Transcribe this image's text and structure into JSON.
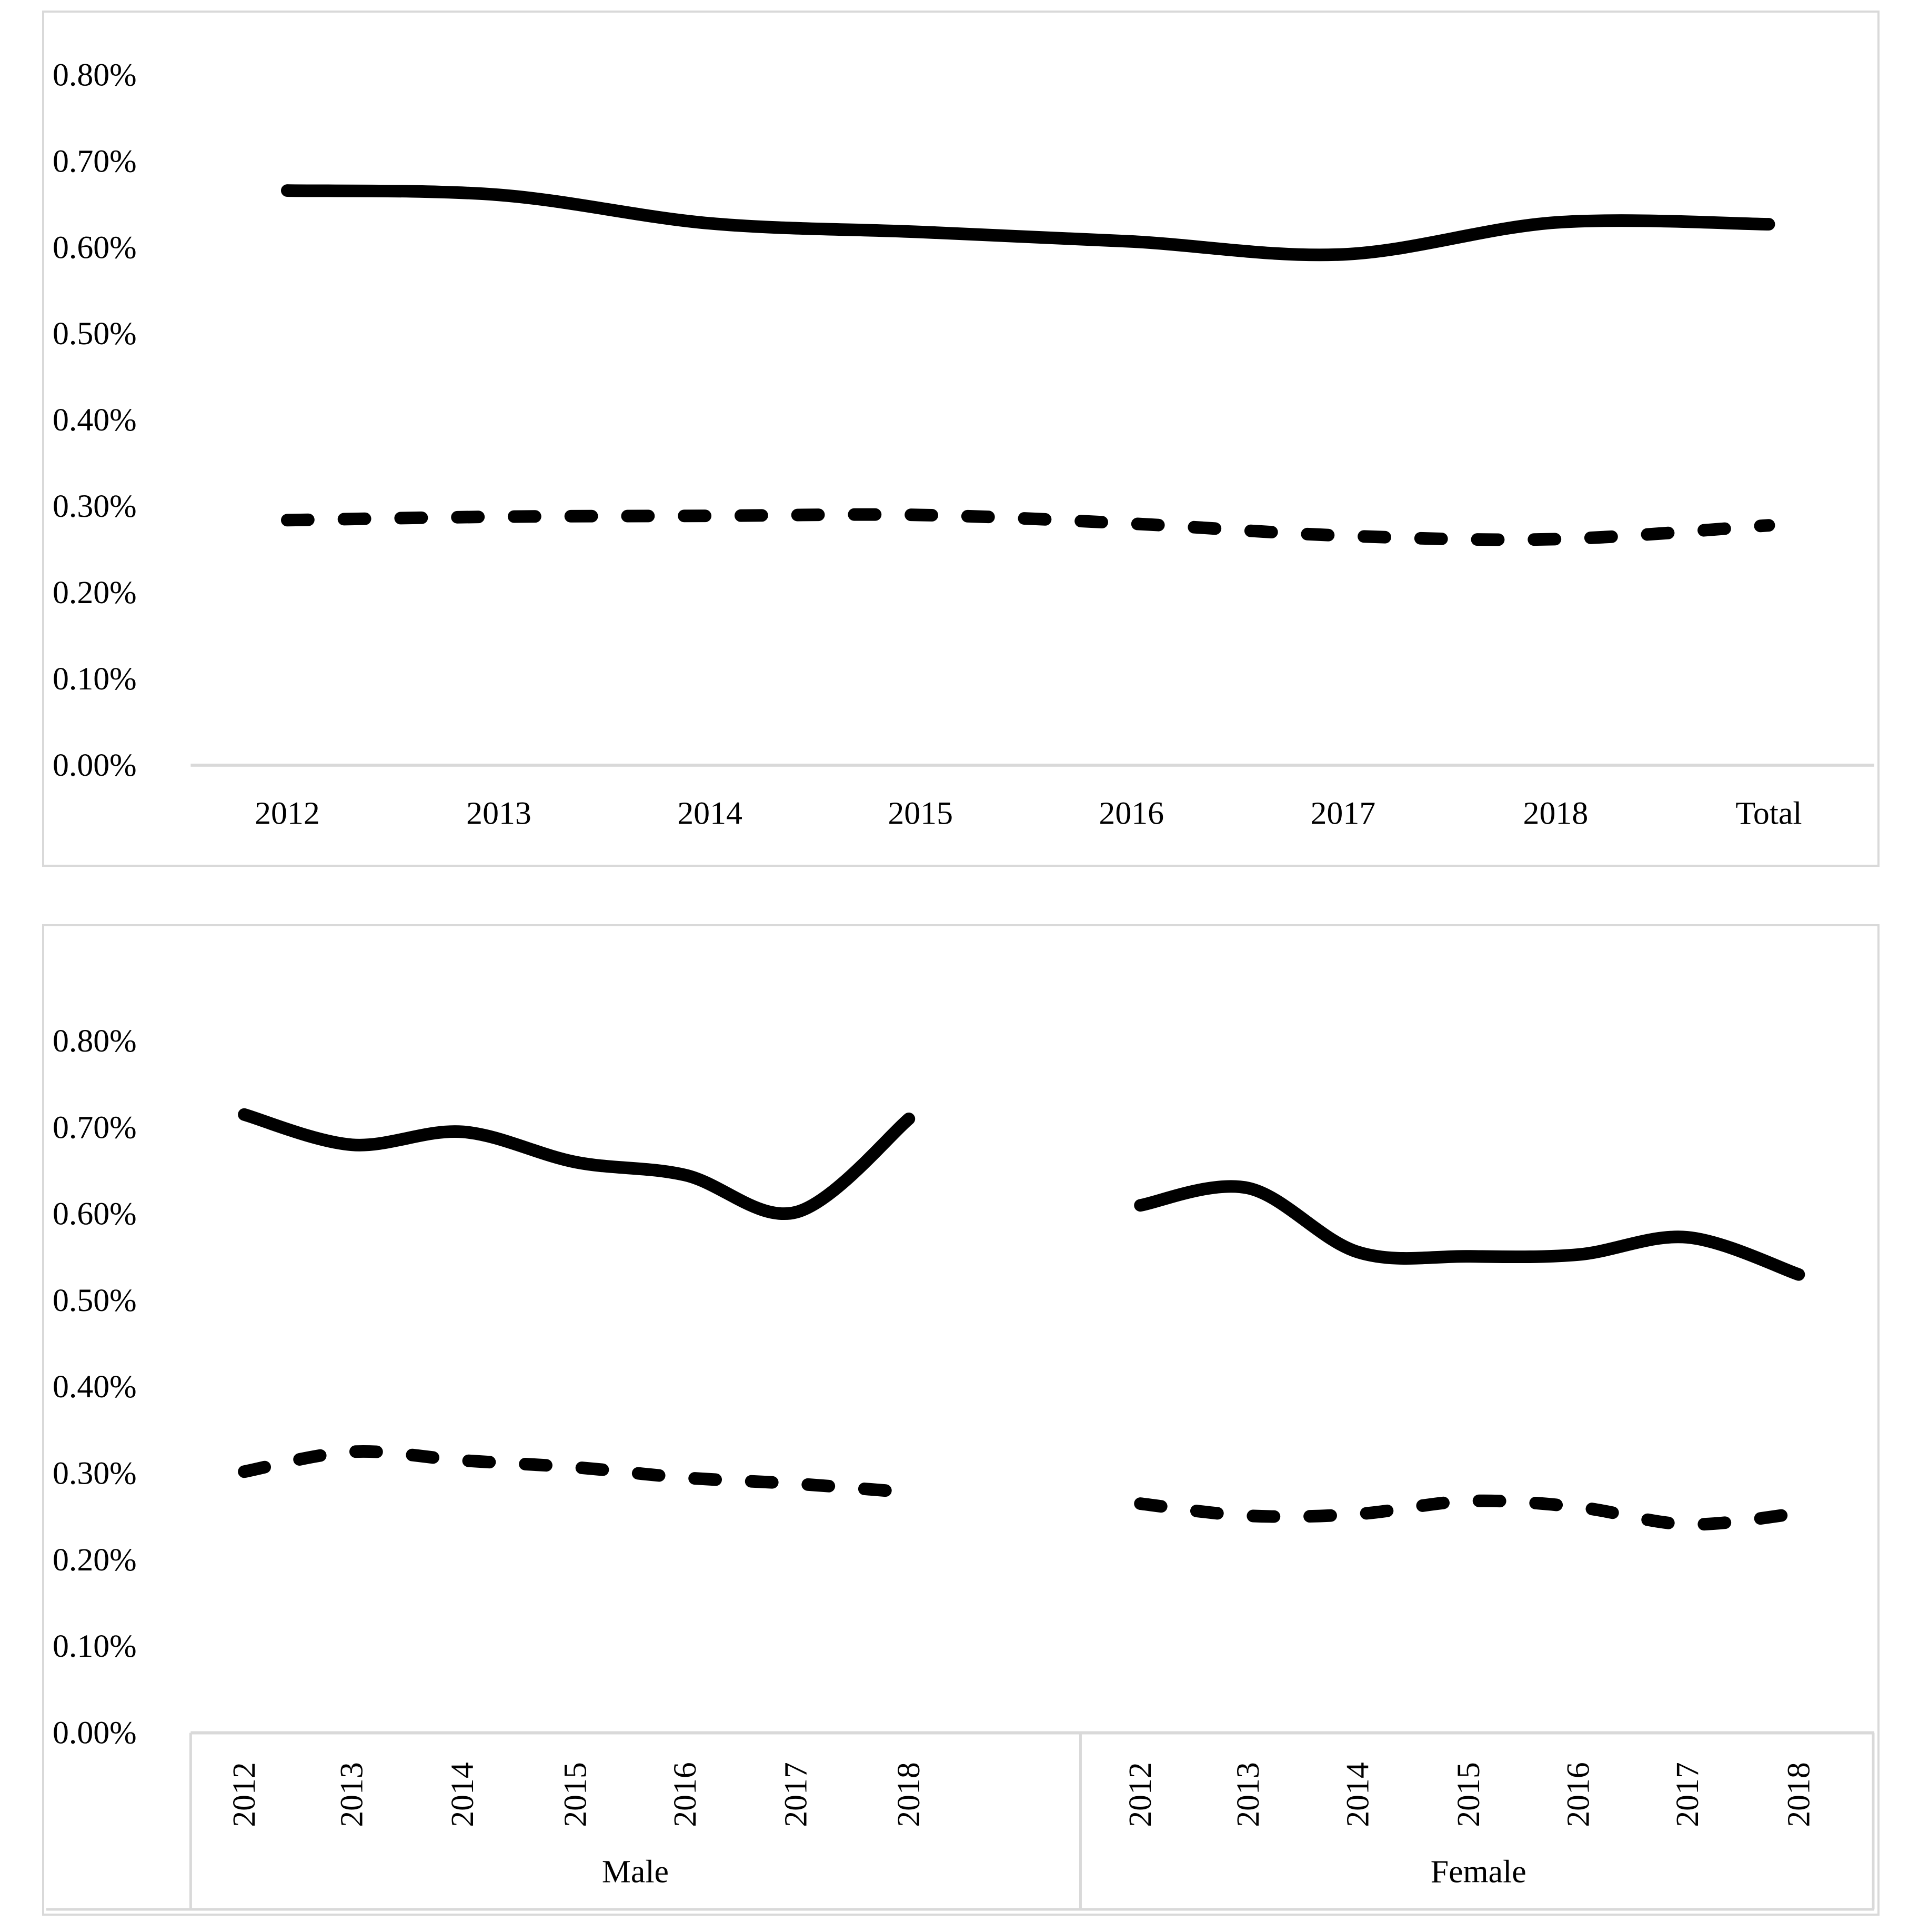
{
  "figure": {
    "panel_count": 2,
    "background": "#ffffff",
    "line_color": "#000000",
    "axis_color": "#d9d9d9",
    "text_color": "#000000"
  },
  "chart_data": [
    {
      "id": "overall",
      "type": "line",
      "title": "",
      "xlabel": "",
      "ylabel": "",
      "grid": false,
      "legend_position": "none",
      "ylim": [
        0,
        0.8
      ],
      "values_unit": "percent",
      "y_ticks": [
        "0.80%",
        "0.70%",
        "0.60%",
        "0.50%",
        "0.40%",
        "0.30%",
        "0.20%",
        "0.10%",
        "0.00%"
      ],
      "categories": [
        "2012",
        "2013",
        "2014",
        "2015",
        "2016",
        "2017",
        "2018",
        "Total"
      ],
      "series": [
        {
          "name": "solid-series",
          "style": "solid",
          "values": [
            0.666,
            0.661,
            0.628,
            0.618,
            0.607,
            0.592,
            0.629,
            0.627
          ]
        },
        {
          "name": "dashed-series",
          "style": "dashed",
          "values": [
            0.284,
            0.288,
            0.289,
            0.29,
            0.28,
            0.266,
            0.262,
            0.278
          ]
        }
      ]
    },
    {
      "id": "by-sex",
      "type": "line",
      "title": "",
      "xlabel": "",
      "ylabel": "",
      "grid": false,
      "legend_position": "none",
      "ylim": [
        0,
        0.8
      ],
      "values_unit": "percent",
      "y_ticks": [
        "0.80%",
        "0.70%",
        "0.60%",
        "0.50%",
        "0.40%",
        "0.30%",
        "0.20%",
        "0.10%",
        "0.00%"
      ],
      "groups": [
        {
          "label": "Male",
          "categories": [
            "2012",
            "2013",
            "2014",
            "2015",
            "2016",
            "2017",
            "2018"
          ],
          "series": [
            {
              "name": "male-solid",
              "style": "solid",
              "values": [
                0.715,
                0.68,
                0.695,
                0.66,
                0.645,
                0.602,
                0.71
              ]
            },
            {
              "name": "male-dashed",
              "style": "dashed",
              "values": [
                0.302,
                0.325,
                0.315,
                0.307,
                0.295,
                0.288,
                0.278
              ]
            }
          ]
        },
        {
          "label": "Female",
          "categories": [
            "2012",
            "2013",
            "2014",
            "2015",
            "2016",
            "2017",
            "2018"
          ],
          "series": [
            {
              "name": "female-solid",
              "style": "solid",
              "values": [
                0.61,
                0.63,
                0.556,
                0.551,
                0.553,
                0.573,
                0.53
              ]
            },
            {
              "name": "female-dashed",
              "style": "dashed",
              "values": [
                0.265,
                0.251,
                0.253,
                0.268,
                0.261,
                0.241,
                0.254
              ]
            }
          ]
        }
      ]
    }
  ]
}
